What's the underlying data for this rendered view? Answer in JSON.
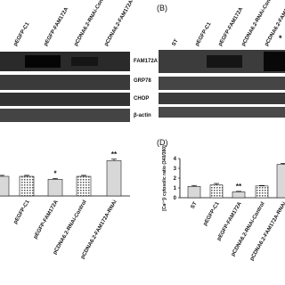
{
  "panel_a": {
    "lanes": [
      "pEGFP-C1",
      "pEGFP-FAM172A",
      "pCDNA6.2-RNAi-Control",
      "pCDNA6.2-FAM172A-RNAi"
    ],
    "bands": [
      "FAM172A",
      "GRP78",
      "CHOP",
      "β-actin"
    ]
  },
  "panel_b": {
    "label": "(B)",
    "lanes": [
      "ST",
      "pEGFP-C1",
      "pEGFP-FAM172A",
      "pCDNA6.2-RNAi-Control",
      "pCDNA6.2-FAM172A-RNAi"
    ],
    "marker": "*"
  },
  "chart_data": [
    {
      "type": "bar",
      "categories": [
        null,
        "pEGFP-C1",
        "pEGFP-FAM172A",
        "pCDNA6.2-RNAi-Control",
        "pCDNA6.2-FAM172A-RNAi"
      ],
      "values": [
        2.0,
        2.0,
        1.7,
        2.0,
        3.6
      ],
      "errors": [
        0.1,
        0.1,
        0.08,
        0.1,
        0.15
      ],
      "annotations": [
        null,
        null,
        "*",
        null,
        "**"
      ],
      "ylim": [
        0,
        4
      ],
      "color": "#d8d8d8"
    },
    {
      "type": "bar",
      "label": "(D)",
      "y_label": "[Ca²⁺]i cytosolic ratio (340/380)",
      "categories": [
        "ST",
        "pEGFP-C1",
        "pEGFP-FAM172A",
        "pCDNA6.2-RNAi-Control",
        "pCDNA6.2-FAM172A-RNAi"
      ],
      "values": [
        1.15,
        1.3,
        0.6,
        1.2,
        3.4
      ],
      "errors": [
        0.1,
        0.15,
        0.05,
        0.05,
        0.1
      ],
      "annotations": [
        null,
        null,
        "**",
        null,
        null
      ],
      "ylim": [
        0,
        4
      ],
      "yticks": [
        0,
        1,
        2,
        3,
        4
      ],
      "color": "#d8d8d8"
    }
  ]
}
